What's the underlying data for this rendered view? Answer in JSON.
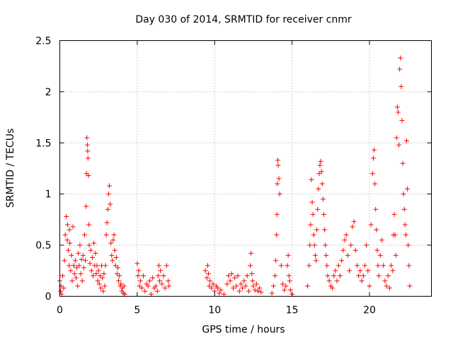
{
  "chart_data": {
    "type": "scatter",
    "title": "Day 030 of 2014, SRMTID for receiver cnmr",
    "xlabel": "GPS time / hours",
    "ylabel": "SRMTID / TECUs",
    "xlim": [
      0,
      24
    ],
    "ylim": [
      0,
      2.5
    ],
    "xticks": [
      0,
      5,
      10,
      15,
      20
    ],
    "xtick_labels": [
      "0",
      "5",
      "10",
      "15",
      "20"
    ],
    "yticks": [
      0,
      0.5,
      1,
      1.5,
      2,
      2.5
    ],
    "ytick_labels": [
      "0",
      "0.5",
      "1",
      "1.5",
      "2",
      "2.5"
    ],
    "grid": true,
    "marker": "+",
    "color": "#ff0000",
    "series": [
      {
        "name": "SRMTID",
        "x": [
          0.0,
          0.05,
          0.08,
          0.12,
          0.18,
          0.25,
          0.3,
          0.35,
          0.42,
          0.48,
          0.5,
          0.55,
          0.6,
          0.62,
          0.65,
          0.7,
          0.75,
          0.8,
          0.85,
          0.9,
          0.95,
          1.0,
          1.05,
          1.1,
          1.15,
          1.2,
          1.25,
          1.3,
          1.35,
          1.4,
          1.45,
          1.5,
          1.55,
          1.6,
          1.65,
          1.7,
          1.72,
          1.75,
          1.78,
          1.8,
          1.82,
          1.85,
          1.88,
          1.9,
          1.95,
          2.0,
          2.05,
          2.1,
          2.15,
          2.2,
          2.25,
          2.3,
          2.35,
          2.4,
          2.45,
          2.5,
          2.55,
          2.6,
          2.65,
          2.7,
          2.75,
          2.8,
          2.85,
          2.9,
          2.95,
          3.0,
          3.05,
          3.1,
          3.15,
          3.2,
          3.25,
          3.3,
          3.35,
          3.4,
          3.45,
          3.5,
          3.55,
          3.6,
          3.65,
          3.7,
          3.75,
          3.8,
          3.85,
          3.9,
          3.95,
          4.0,
          4.05,
          4.1,
          4.15,
          4.2,
          5.0,
          5.05,
          5.1,
          5.15,
          5.2,
          5.3,
          5.4,
          5.5,
          5.6,
          5.7,
          5.8,
          5.9,
          6.0,
          6.1,
          6.2,
          6.3,
          6.35,
          6.4,
          6.45,
          6.5,
          6.6,
          6.7,
          6.8,
          6.9,
          7.0,
          7.05,
          9.4,
          9.5,
          9.55,
          9.6,
          9.65,
          9.7,
          9.8,
          9.9,
          10.0,
          10.1,
          10.2,
          10.3,
          10.4,
          10.6,
          10.8,
          10.9,
          11.0,
          11.1,
          11.2,
          11.3,
          11.4,
          11.5,
          11.6,
          11.7,
          11.8,
          11.9,
          12.0,
          12.1,
          12.2,
          12.3,
          12.35,
          12.4,
          12.45,
          12.5,
          12.6,
          12.7,
          12.8,
          12.9,
          13.0,
          13.7,
          13.8,
          13.9,
          13.95,
          14.0,
          14.02,
          14.05,
          14.08,
          14.1,
          14.15,
          14.2,
          14.3,
          14.4,
          14.5,
          14.6,
          14.7,
          14.75,
          14.8,
          14.85,
          14.9,
          15.0,
          16.0,
          16.1,
          16.15,
          16.2,
          16.25,
          16.3,
          16.35,
          16.4,
          16.45,
          16.5,
          16.55,
          16.6,
          16.65,
          16.7,
          16.75,
          16.8,
          16.85,
          16.9,
          16.95,
          17.0,
          17.05,
          17.1,
          17.15,
          17.2,
          17.25,
          17.3,
          17.4,
          17.5,
          17.6,
          17.7,
          17.8,
          17.9,
          18.0,
          18.1,
          18.2,
          18.3,
          18.4,
          18.5,
          18.6,
          18.7,
          18.8,
          18.9,
          19.0,
          19.1,
          19.2,
          19.3,
          19.4,
          19.5,
          19.6,
          19.7,
          19.8,
          19.9,
          20.0,
          20.1,
          20.2,
          20.25,
          20.3,
          20.35,
          20.4,
          20.45,
          20.5,
          20.55,
          20.6,
          20.7,
          20.8,
          20.9,
          21.0,
          21.1,
          21.2,
          21.3,
          21.4,
          21.5,
          21.55,
          21.6,
          21.65,
          21.7,
          21.75,
          21.8,
          21.85,
          21.9,
          21.95,
          22.0,
          22.05,
          22.1,
          22.15,
          22.2,
          22.25,
          22.3,
          22.35,
          22.4,
          22.45,
          22.5,
          22.55,
          22.6
        ],
        "y": [
          0.15,
          0.05,
          0.1,
          0.02,
          0.2,
          0.08,
          0.35,
          0.6,
          0.78,
          0.55,
          0.7,
          0.45,
          0.3,
          0.65,
          0.52,
          0.25,
          0.4,
          0.15,
          0.68,
          0.3,
          0.22,
          0.35,
          0.18,
          0.28,
          0.1,
          0.42,
          0.3,
          0.5,
          0.22,
          0.36,
          0.15,
          0.4,
          0.28,
          0.6,
          0.35,
          0.88,
          1.2,
          1.55,
          1.48,
          1.42,
          1.35,
          1.18,
          0.7,
          0.5,
          0.32,
          0.45,
          0.25,
          0.38,
          0.2,
          0.52,
          0.3,
          0.42,
          0.22,
          0.3,
          0.15,
          0.25,
          0.12,
          0.2,
          0.08,
          0.3,
          0.18,
          0.05,
          0.22,
          0.1,
          0.3,
          0.6,
          0.72,
          0.85,
          1.0,
          1.08,
          0.9,
          0.52,
          0.4,
          0.35,
          0.55,
          0.6,
          0.45,
          0.3,
          0.38,
          0.22,
          0.28,
          0.15,
          0.2,
          0.1,
          0.12,
          0.05,
          0.08,
          0.03,
          0.1,
          0.02,
          0.32,
          0.2,
          0.25,
          0.1,
          0.15,
          0.08,
          0.2,
          0.05,
          0.12,
          0.1,
          0.15,
          0.02,
          0.18,
          0.08,
          0.1,
          0.05,
          0.2,
          0.3,
          0.15,
          0.25,
          0.12,
          0.2,
          0.08,
          0.3,
          0.15,
          0.1,
          0.25,
          0.18,
          0.3,
          0.22,
          0.1,
          0.15,
          0.08,
          0.12,
          0.05,
          0.1,
          0.08,
          0.03,
          0.06,
          0.02,
          0.12,
          0.2,
          0.15,
          0.22,
          0.08,
          0.18,
          0.1,
          0.2,
          0.05,
          0.12,
          0.08,
          0.15,
          0.1,
          0.2,
          0.05,
          0.3,
          0.42,
          0.22,
          0.15,
          0.1,
          0.06,
          0.12,
          0.05,
          0.08,
          0.04,
          0.03,
          0.1,
          0.2,
          0.35,
          0.6,
          0.8,
          1.1,
          1.33,
          1.28,
          1.15,
          1.0,
          0.3,
          0.12,
          0.06,
          0.1,
          0.3,
          0.4,
          0.2,
          0.15,
          0.06,
          0.02,
          0.1,
          0.3,
          0.5,
          0.7,
          1.14,
          0.92,
          0.8,
          0.6,
          0.5,
          0.4,
          0.35,
          0.65,
          0.85,
          1.05,
          1.2,
          1.28,
          1.32,
          1.22,
          1.1,
          0.95,
          0.8,
          0.65,
          0.5,
          0.4,
          0.3,
          0.2,
          0.15,
          0.1,
          0.08,
          0.2,
          0.25,
          0.15,
          0.3,
          0.2,
          0.35,
          0.45,
          0.55,
          0.6,
          0.4,
          0.25,
          0.5,
          0.68,
          0.73,
          0.45,
          0.3,
          0.2,
          0.25,
          0.15,
          0.2,
          0.3,
          0.5,
          0.25,
          0.1,
          0.7,
          1.2,
          1.35,
          1.43,
          1.1,
          0.85,
          0.65,
          0.45,
          0.3,
          0.2,
          0.4,
          0.55,
          0.3,
          0.15,
          0.1,
          0.2,
          0.08,
          0.3,
          0.25,
          0.6,
          0.8,
          0.6,
          0.4,
          1.55,
          1.85,
          1.8,
          1.48,
          2.22,
          2.33,
          2.05,
          1.72,
          1.3,
          1.0,
          0.85,
          0.7,
          0.6,
          1.52,
          1.05,
          0.5,
          0.3,
          0.1
        ]
      }
    ]
  }
}
